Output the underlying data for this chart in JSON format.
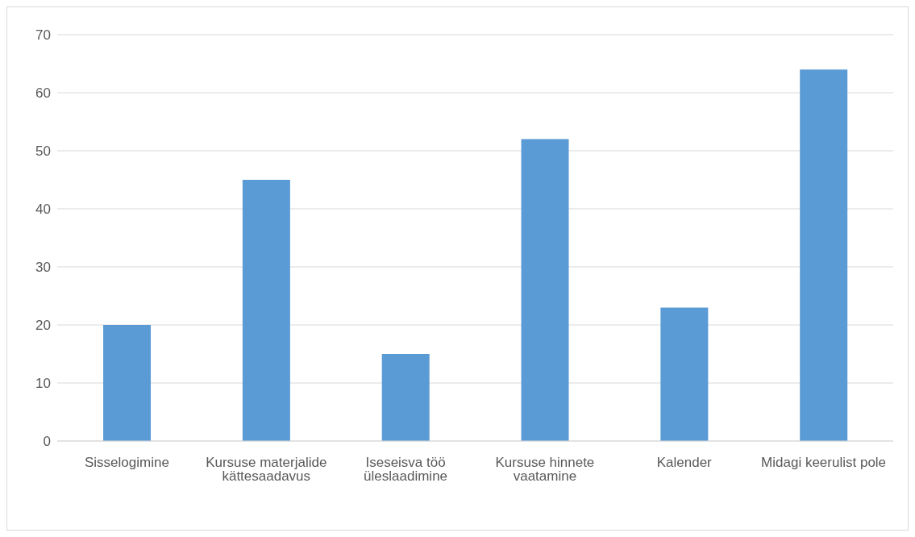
{
  "chart_data": {
    "type": "bar",
    "categories": [
      "Sisselogimine",
      "Kursuse materjalide kättesaadavus",
      "Iseseisva töö üleslaadimine",
      "Kursuse hinnete vaatamine",
      "Kalender",
      "Midagi keerulist pole"
    ],
    "values": [
      20,
      45,
      15,
      52,
      23,
      64
    ],
    "color": "#5b9bd5",
    "ylim": [
      0,
      70
    ],
    "yticks": [
      0,
      10,
      20,
      30,
      40,
      50,
      60,
      70
    ],
    "grid": "y"
  }
}
